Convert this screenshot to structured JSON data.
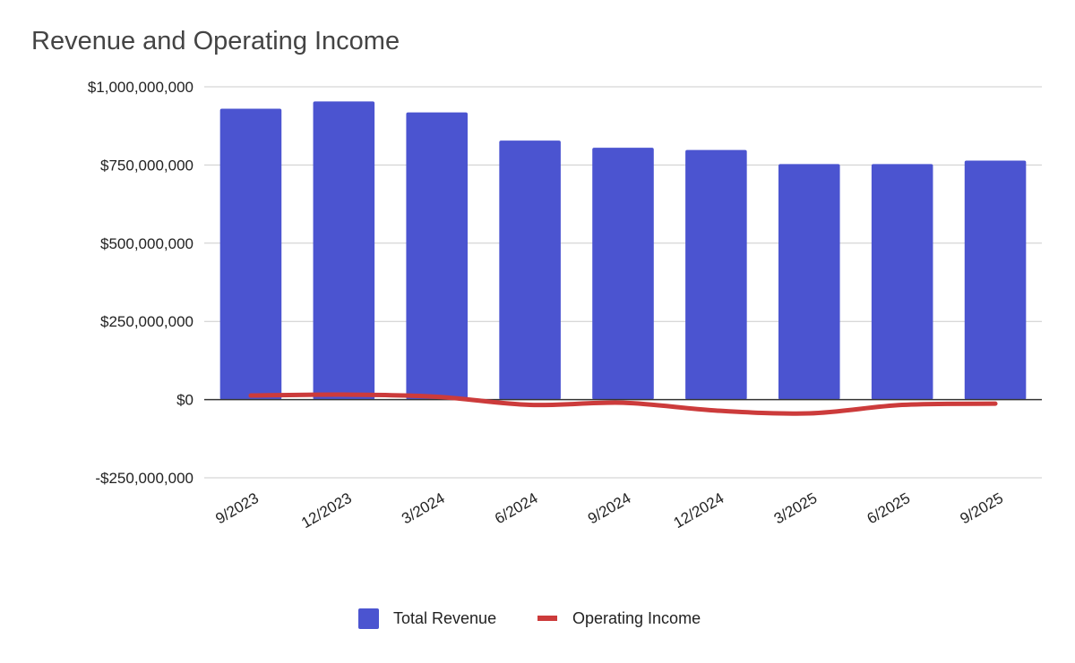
{
  "chart_data": {
    "type": "bar",
    "title": "Revenue and Operating Income",
    "categories": [
      "9/2023",
      "12/2023",
      "3/2024",
      "6/2024",
      "9/2024",
      "12/2024",
      "3/2025",
      "6/2025",
      "9/2025"
    ],
    "series": [
      {
        "name": "Total Revenue",
        "type": "bar",
        "color": "#4B54D0",
        "values": [
          930000000,
          953000000,
          918000000,
          828000000,
          805000000,
          798000000,
          753000000,
          753000000,
          764000000
        ]
      },
      {
        "name": "Operating Income",
        "type": "line",
        "color": "#CC3B3B",
        "values": [
          13000000,
          16000000,
          9000000,
          -17000000,
          -10000000,
          -35000000,
          -44000000,
          -17000000,
          -13000000
        ]
      }
    ],
    "ylim": [
      -250000000,
      1000000000
    ],
    "yticks": [
      -250000000,
      0,
      250000000,
      500000000,
      750000000,
      1000000000
    ],
    "ytick_labels": [
      "-$250,000,000",
      "$0",
      "$250,000,000",
      "$500,000,000",
      "$750,000,000",
      "$1,000,000,000"
    ],
    "xlabel": "",
    "ylabel": "",
    "grid": true,
    "legend_position": "bottom"
  }
}
